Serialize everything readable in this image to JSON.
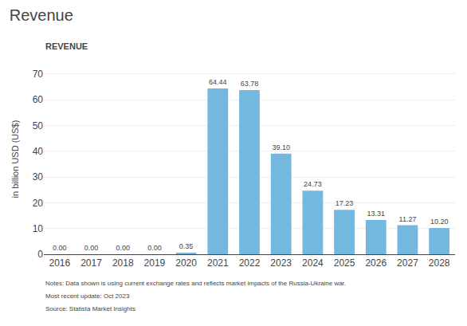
{
  "chart_data": {
    "type": "bar",
    "title": "Revenue",
    "subtitle": "REVENUE",
    "categories": [
      "2016",
      "2017",
      "2018",
      "2019",
      "2020",
      "2021",
      "2022",
      "2023",
      "2024",
      "2025",
      "2026",
      "2027",
      "2028"
    ],
    "values": [
      0.0,
      0.0,
      0.0,
      0.0,
      0.35,
      64.44,
      63.78,
      39.1,
      24.73,
      17.23,
      13.31,
      11.27,
      10.2
    ],
    "value_labels": [
      "0.00",
      "0.00",
      "0.00",
      "0.00",
      "0.35",
      "64.44",
      "63.78",
      "39.10",
      "24.73",
      "17.23",
      "13.31",
      "11.27",
      "10.20"
    ],
    "data_labels": true,
    "color": "#74b8e0",
    "ylabel": "in billion USD (US$)",
    "ylim": [
      0,
      74
    ],
    "yticks": [
      0,
      10,
      20,
      30,
      40,
      50,
      60,
      70
    ],
    "grid": true,
    "annotations": [
      "Notes: Data shown is using current exchange rates and reflects market impacts of the Russia-Ukraine war.",
      "Most recent update: Oct 2023",
      "Source: Statista Market Insights"
    ]
  }
}
